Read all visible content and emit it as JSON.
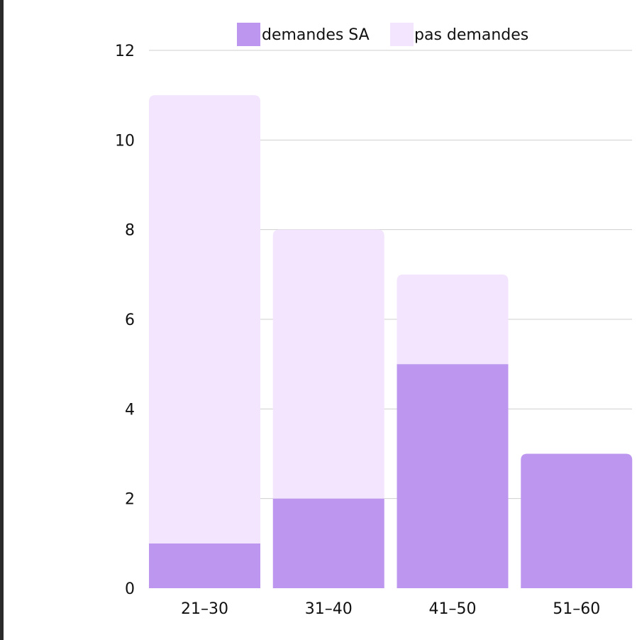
{
  "chart_data": {
    "type": "bar",
    "stacked": true,
    "categories": [
      "21–30",
      "31–40",
      "41–50",
      "51–60"
    ],
    "series": [
      {
        "name": "demandes SA",
        "values": [
          1,
          2,
          5,
          3
        ],
        "color": "#bd97ef"
      },
      {
        "name": "pas demandes",
        "values": [
          10,
          6,
          2,
          0
        ],
        "color": "#f3e5fd"
      }
    ],
    "ylim": [
      0,
      12
    ],
    "yticks": [
      0,
      2,
      4,
      6,
      8,
      10,
      12
    ],
    "grid": true,
    "legend_position": "top-center"
  }
}
